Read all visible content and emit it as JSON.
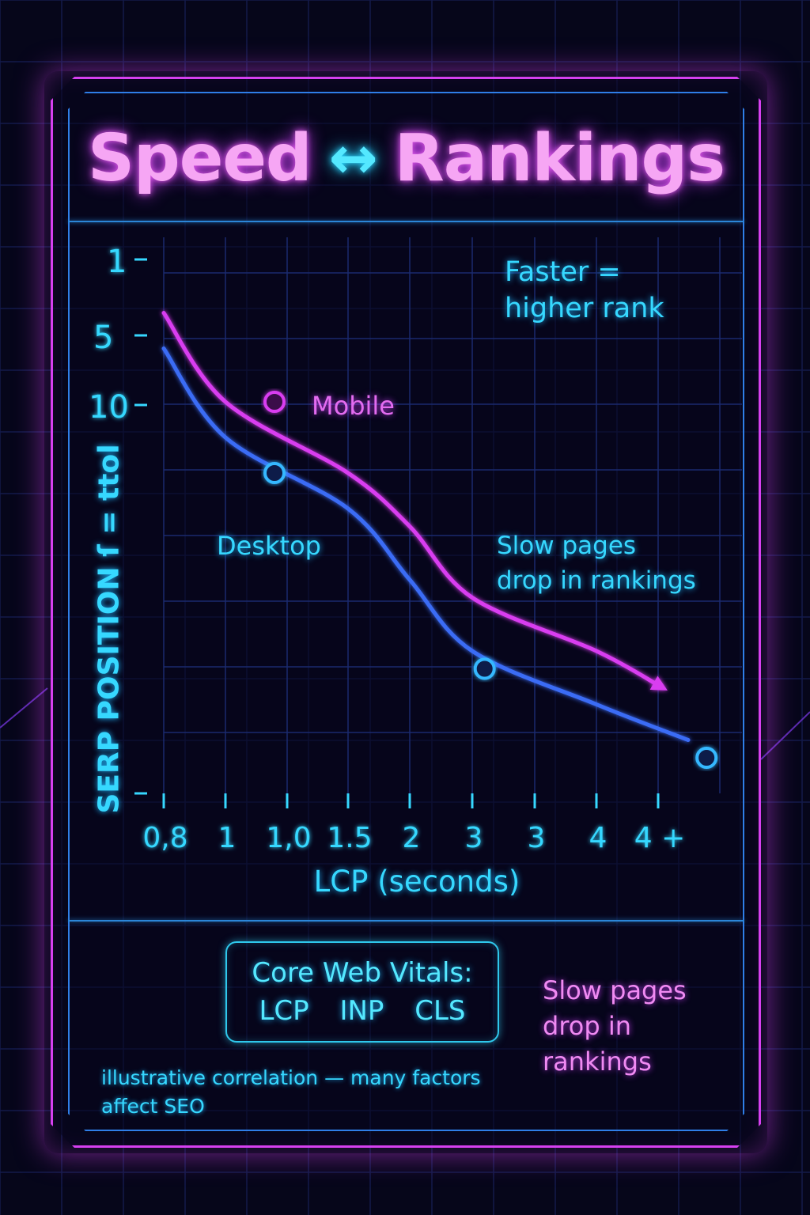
{
  "title": {
    "left": "Speed",
    "arrow": "↔",
    "right": "Rankings"
  },
  "chart_data": {
    "type": "line",
    "ylabel": "SERP POSITION ſ = ttol",
    "xlabel": "LCP (seconds)",
    "x_tick_labels": [
      "0,8",
      "1",
      "1,0",
      "1.5",
      "2",
      "3",
      "3",
      "4",
      "4 +"
    ],
    "y_tick_labels": [
      "1",
      "5",
      "10"
    ],
    "y_reversed": true,
    "series": [
      {
        "name": "Mobile",
        "color": "#d93df0",
        "x": [
          0.8,
          1.0,
          1.5,
          2.0,
          3.0,
          4.0,
          4.7
        ],
        "y": [
          4,
          9,
          13,
          16,
          20,
          23,
          25
        ],
        "ends_with_arrow": true
      },
      {
        "name": "Desktop",
        "color": "#3a6cf5",
        "x": [
          0.8,
          1.0,
          1.5,
          2.0,
          3.0,
          4.0,
          5.0
        ],
        "y": [
          6,
          11,
          15,
          19,
          23,
          26,
          28
        ]
      }
    ],
    "points": [
      {
        "series": "Mobile",
        "x": 1.2,
        "y": 9
      },
      {
        "series": "Desktop",
        "x": 1.2,
        "y": 13
      },
      {
        "series": "Desktop",
        "x": 3.1,
        "y": 24
      },
      {
        "series": "Desktop",
        "x": 5.2,
        "y": 29
      }
    ],
    "grid": true,
    "legend": "inline labels"
  },
  "annotations": {
    "faster": [
      "Faster =",
      "higher rank"
    ],
    "slow": [
      "Slow pages",
      "drop in rankings"
    ],
    "slow_pink": [
      "Slow pages",
      "drop in",
      "rankings"
    ]
  },
  "vitals": {
    "title": "Core Web Vitals:",
    "items": [
      "LCP",
      "INP",
      "CLS"
    ]
  },
  "footnote": [
    "illustrative correlation — many factors",
    "affect SEO"
  ],
  "colors": {
    "background": "#06061a",
    "frame": "#d640f0",
    "inner_frame": "#2f7ee8",
    "cyan": "#36d8ff",
    "magenta": "#d93df0",
    "blue": "#3a6cf5",
    "title": "#f6a6f4"
  }
}
